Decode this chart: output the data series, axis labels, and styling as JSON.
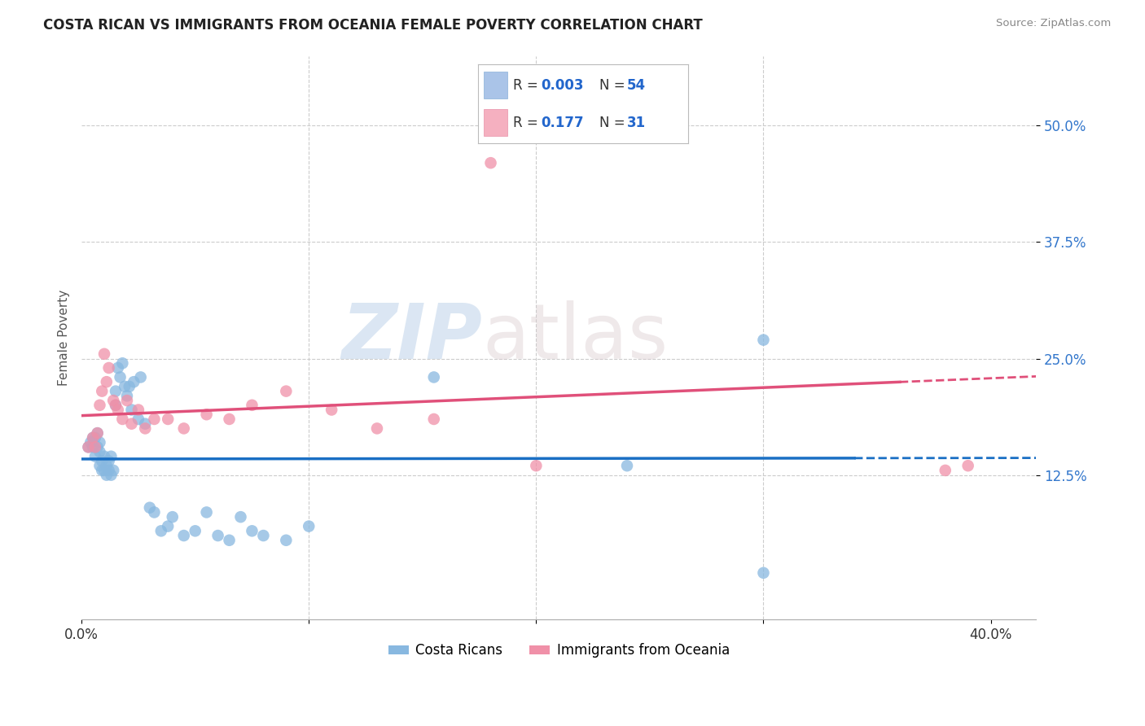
{
  "title": "COSTA RICAN VS IMMIGRANTS FROM OCEANIA FEMALE POVERTY CORRELATION CHART",
  "source": "Source: ZipAtlas.com",
  "ylabel": "Female Poverty",
  "xlim": [
    0.0,
    0.42
  ],
  "ylim": [
    -0.03,
    0.575
  ],
  "xticks": [
    0.0,
    0.1,
    0.2,
    0.3,
    0.4
  ],
  "xticklabels": [
    "0.0%",
    "",
    "",
    "",
    "40.0%"
  ],
  "ytick_positions": [
    0.125,
    0.25,
    0.375,
    0.5
  ],
  "ytick_labels": [
    "12.5%",
    "25.0%",
    "37.5%",
    "50.0%"
  ],
  "background_color": "#ffffff",
  "grid_color": "#cccccc",
  "legend_color1": "#aac4e8",
  "legend_color2": "#f5b0c0",
  "series1_color": "#88b8e0",
  "series2_color": "#f090a8",
  "line1_color": "#1a6fc4",
  "line2_color": "#e0507a",
  "costa_rican_x": [
    0.003,
    0.004,
    0.005,
    0.005,
    0.006,
    0.006,
    0.007,
    0.007,
    0.008,
    0.008,
    0.008,
    0.009,
    0.009,
    0.01,
    0.01,
    0.011,
    0.011,
    0.012,
    0.012,
    0.013,
    0.013,
    0.014,
    0.015,
    0.015,
    0.016,
    0.017,
    0.018,
    0.019,
    0.02,
    0.021,
    0.022,
    0.023,
    0.025,
    0.026,
    0.028,
    0.03,
    0.032,
    0.035,
    0.038,
    0.04,
    0.045,
    0.05,
    0.055,
    0.06,
    0.065,
    0.07,
    0.075,
    0.08,
    0.09,
    0.1,
    0.155,
    0.24,
    0.3,
    0.3
  ],
  "costa_rican_y": [
    0.155,
    0.16,
    0.155,
    0.165,
    0.145,
    0.165,
    0.155,
    0.17,
    0.15,
    0.16,
    0.135,
    0.14,
    0.13,
    0.145,
    0.13,
    0.135,
    0.125,
    0.14,
    0.13,
    0.145,
    0.125,
    0.13,
    0.2,
    0.215,
    0.24,
    0.23,
    0.245,
    0.22,
    0.21,
    0.22,
    0.195,
    0.225,
    0.185,
    0.23,
    0.18,
    0.09,
    0.085,
    0.065,
    0.07,
    0.08,
    0.06,
    0.065,
    0.085,
    0.06,
    0.055,
    0.08,
    0.065,
    0.06,
    0.055,
    0.07,
    0.23,
    0.135,
    0.27,
    0.02
  ],
  "oceania_x": [
    0.003,
    0.005,
    0.006,
    0.007,
    0.008,
    0.009,
    0.01,
    0.011,
    0.012,
    0.014,
    0.015,
    0.016,
    0.018,
    0.02,
    0.022,
    0.025,
    0.028,
    0.032,
    0.038,
    0.045,
    0.055,
    0.065,
    0.075,
    0.09,
    0.11,
    0.13,
    0.155,
    0.18,
    0.2,
    0.38,
    0.39
  ],
  "oceania_y": [
    0.155,
    0.165,
    0.155,
    0.17,
    0.2,
    0.215,
    0.255,
    0.225,
    0.24,
    0.205,
    0.2,
    0.195,
    0.185,
    0.205,
    0.18,
    0.195,
    0.175,
    0.185,
    0.185,
    0.175,
    0.19,
    0.185,
    0.2,
    0.215,
    0.195,
    0.175,
    0.185,
    0.46,
    0.135,
    0.13,
    0.135
  ]
}
